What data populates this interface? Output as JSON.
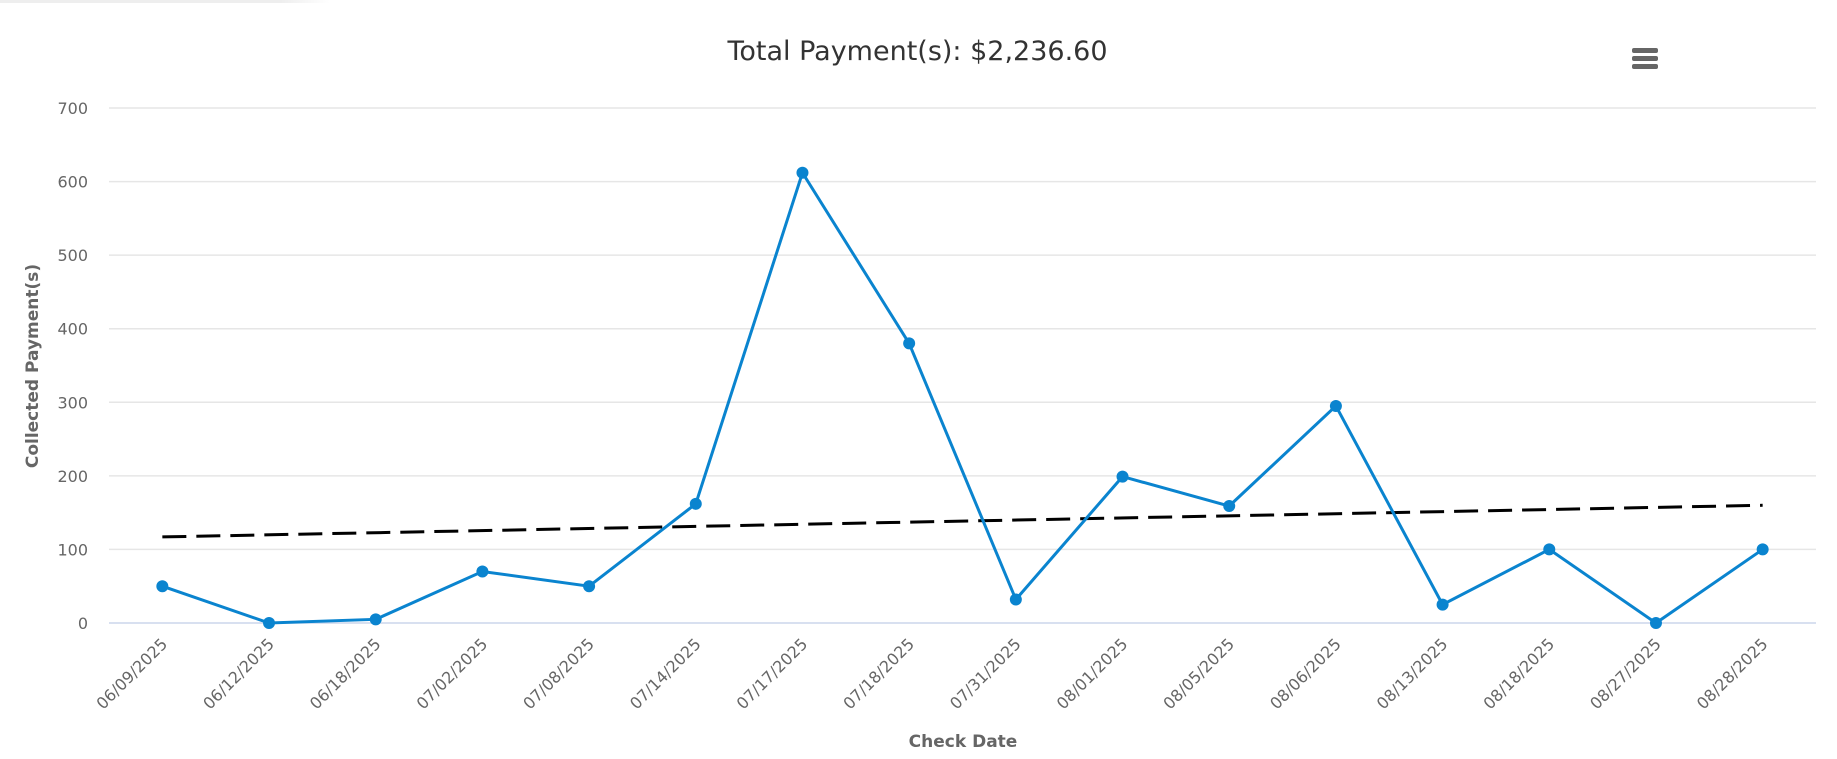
{
  "chart": {
    "title": "Total Payment(s): $2,236.60",
    "menu_icon": "hamburger-menu-icon",
    "colors": {
      "series": "#0a84cf",
      "trend": "#000000",
      "grid": "#e6e6e6",
      "axis": "#ccd6eb",
      "text": "#666666"
    }
  },
  "chart_data": {
    "type": "line",
    "title": "Total Payment(s): $2,236.60",
    "xlabel": "Check Date",
    "ylabel": "Collected Payment(s)",
    "ylim": [
      0,
      700
    ],
    "yticks": [
      0,
      100,
      200,
      300,
      400,
      500,
      600,
      700
    ],
    "grid": true,
    "legend": "none",
    "categories": [
      "06/09/2025",
      "06/12/2025",
      "06/18/2025",
      "07/02/2025",
      "07/08/2025",
      "07/14/2025",
      "07/17/2025",
      "07/18/2025",
      "07/31/2025",
      "08/01/2025",
      "08/05/2025",
      "08/06/2025",
      "08/13/2025",
      "08/18/2025",
      "08/27/2025",
      "08/28/2025"
    ],
    "series": [
      {
        "name": "Collected Payment(s)",
        "style": "solid-markers",
        "values": [
          50,
          0,
          5,
          70,
          50,
          162,
          612,
          380,
          32,
          199,
          159,
          295,
          25,
          100,
          0,
          100
        ]
      },
      {
        "name": "Trend",
        "style": "dashed",
        "values": [
          117,
          120,
          123,
          126,
          129,
          131,
          134,
          137,
          140,
          143,
          146,
          149,
          152,
          154,
          157,
          160
        ]
      }
    ]
  }
}
